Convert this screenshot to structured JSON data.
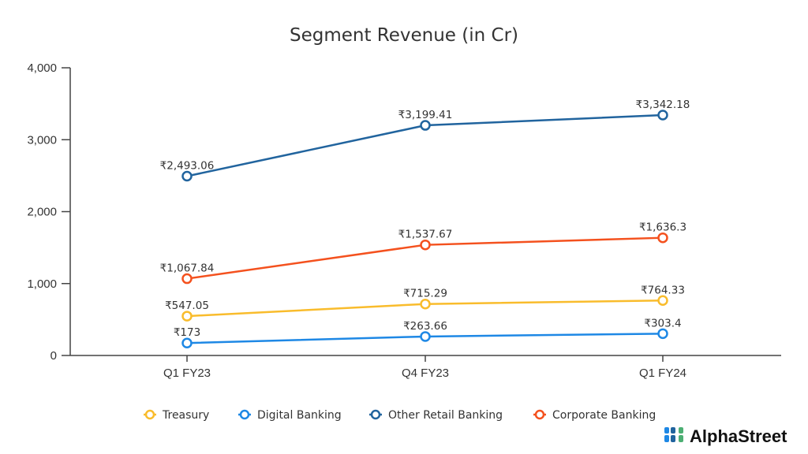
{
  "chart_data": {
    "type": "line",
    "title": "Segment Revenue (in Cr)",
    "categories": [
      "Q1 FY23",
      "Q4 FY23",
      "Q1 FY24"
    ],
    "ylim": [
      0,
      4000
    ],
    "yticks": [
      0,
      1000,
      2000,
      3000,
      4000
    ],
    "ytick_labels": [
      "0",
      "1,000",
      "2,000",
      "3,000",
      "4,000"
    ],
    "grid": false,
    "legend_placement": "bottom",
    "series": [
      {
        "name": "Treasury",
        "color": "#F9BC2C",
        "values": [
          547.05,
          715.29,
          764.33
        ],
        "labels": [
          "₹547.05",
          "₹715.29",
          "₹764.33"
        ]
      },
      {
        "name": "Digital Banking",
        "color": "#1E88E5",
        "values": [
          173,
          263.66,
          303.4
        ],
        "labels": [
          "₹173",
          "₹263.66",
          "₹303.4"
        ]
      },
      {
        "name": "Other Retail Banking",
        "color": "#21649E",
        "values": [
          2493.06,
          3199.41,
          3342.18
        ],
        "labels": [
          "₹2,493.06",
          "₹3,199.41",
          "₹3,342.18"
        ]
      },
      {
        "name": "Corporate Banking",
        "color": "#F4511E",
        "values": [
          1067.84,
          1537.67,
          1636.3
        ],
        "labels": [
          "₹1,067.84",
          "₹1,537.67",
          "₹1,636.3"
        ]
      }
    ]
  },
  "branding": {
    "logo_text": "AlphaStreet"
  }
}
